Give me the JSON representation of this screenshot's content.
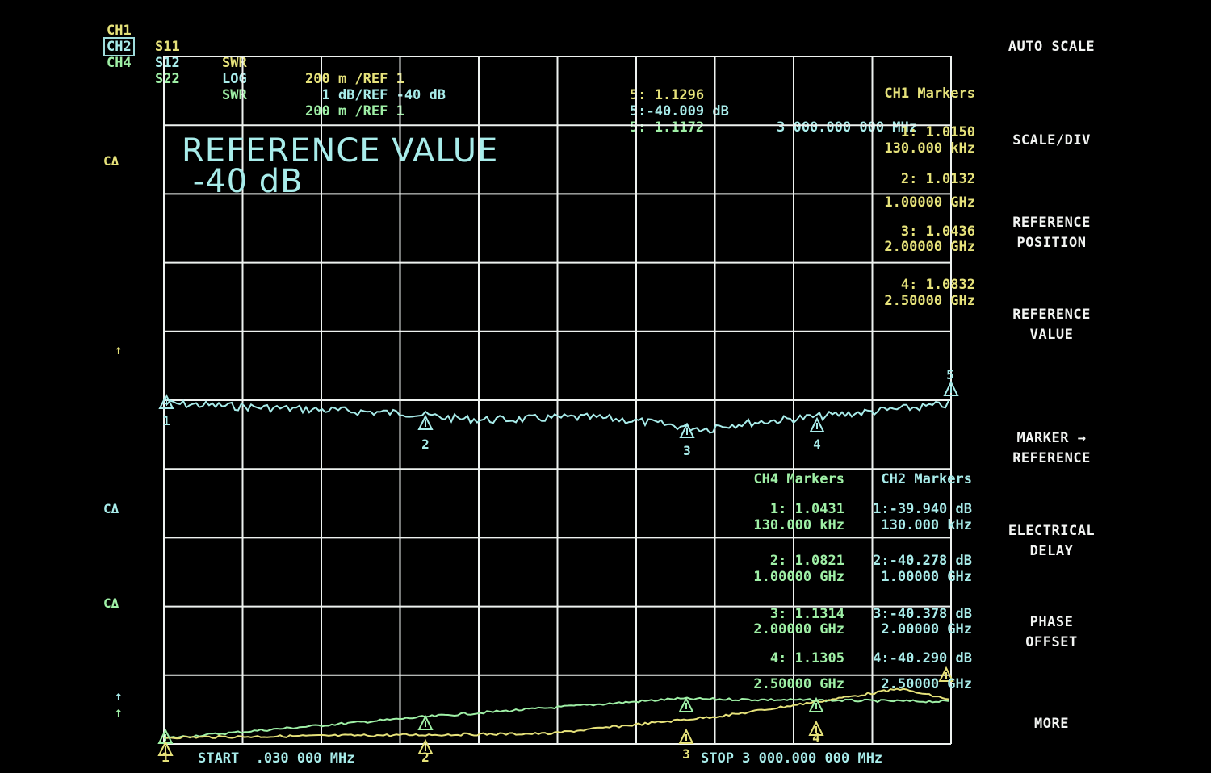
{
  "header": {
    "channels": [
      {
        "ch": "CH1",
        "param": "S11",
        "format": "SWR",
        "scale": "200 m /REF 1",
        "marker": "5: 1.1296",
        "color": "#e6e27a",
        "active": false
      },
      {
        "ch": "CH2",
        "param": "S12",
        "format": "LOG",
        "scale": "  1 dB/REF -40 dB",
        "marker": "5:-40.009 dB",
        "color": "#a8ecea",
        "active": true
      },
      {
        "ch": "CH4",
        "param": "S22",
        "format": "SWR",
        "scale": "200 m /REF 1",
        "marker": "5: 1.1172",
        "color": "#9ff0a6",
        "active": false
      }
    ],
    "marker_freq": "3 000.000 000 MHz"
  },
  "reference_banner": {
    "line1": "REFERENCE VALUE",
    "line2": " -40 dB"
  },
  "side_symbols": {
    "ca1": "CΔ",
    "ca2": "CΔ",
    "ca3": "CΔ",
    "arrow": "↑"
  },
  "ch1_markers": {
    "title": "CH1 Markers",
    "items": [
      {
        "value": "1: 1.0150",
        "freq": "130.000 kHz"
      },
      {
        "value": "2: 1.0132",
        "freq": "1.00000 GHz"
      },
      {
        "value": "3: 1.0436",
        "freq": "2.00000 GHz"
      },
      {
        "value": "4: 1.0832",
        "freq": "2.50000 GHz"
      }
    ]
  },
  "ch4_markers": {
    "title": "CH4 Markers",
    "items": [
      {
        "value": "1: 1.0431",
        "freq": "130.000 kHz"
      },
      {
        "value": "2: 1.0821",
        "freq": "1.00000 GHz"
      },
      {
        "value": "3: 1.1314",
        "freq": "2.00000 GHz"
      },
      {
        "value": "4: 1.1305",
        "freq": "2.50000 GHz"
      }
    ]
  },
  "ch2_markers": {
    "title": "CH2 Markers",
    "items": [
      {
        "value": "1:-39.940 dB",
        "freq": "130.000 kHz"
      },
      {
        "value": "2:-40.278 dB",
        "freq": "1.00000 GHz"
      },
      {
        "value": "3:-40.378 dB",
        "freq": "2.00000 GHz"
      },
      {
        "value": "4:-40.290 dB",
        "freq": "2.50000 GHz"
      }
    ]
  },
  "footer": {
    "start": "START  .030 000 MHz",
    "stop": "STOP 3 000.000 000 MHz"
  },
  "softkeys": [
    {
      "label": "AUTO SCALE"
    },
    {
      "label": "SCALE/DIV"
    },
    {
      "label": "REFERENCE\nPOSITION"
    },
    {
      "label": "REFERENCE\nVALUE"
    },
    {
      "label": "MARKER →\nREFERENCE"
    },
    {
      "label": "ELECTRICAL\nDELAY"
    },
    {
      "label": "PHASE\nOFFSET"
    },
    {
      "label": "MORE"
    }
  ],
  "marker_symbols": {
    "m1": "1",
    "m2": "2",
    "m3": "3",
    "m4": "4",
    "m5": "5"
  },
  "colors": {
    "grid": "#eef2f0",
    "ch1": "#e6e27a",
    "ch2": "#a8ecea",
    "ch4": "#9ff0a6"
  }
}
